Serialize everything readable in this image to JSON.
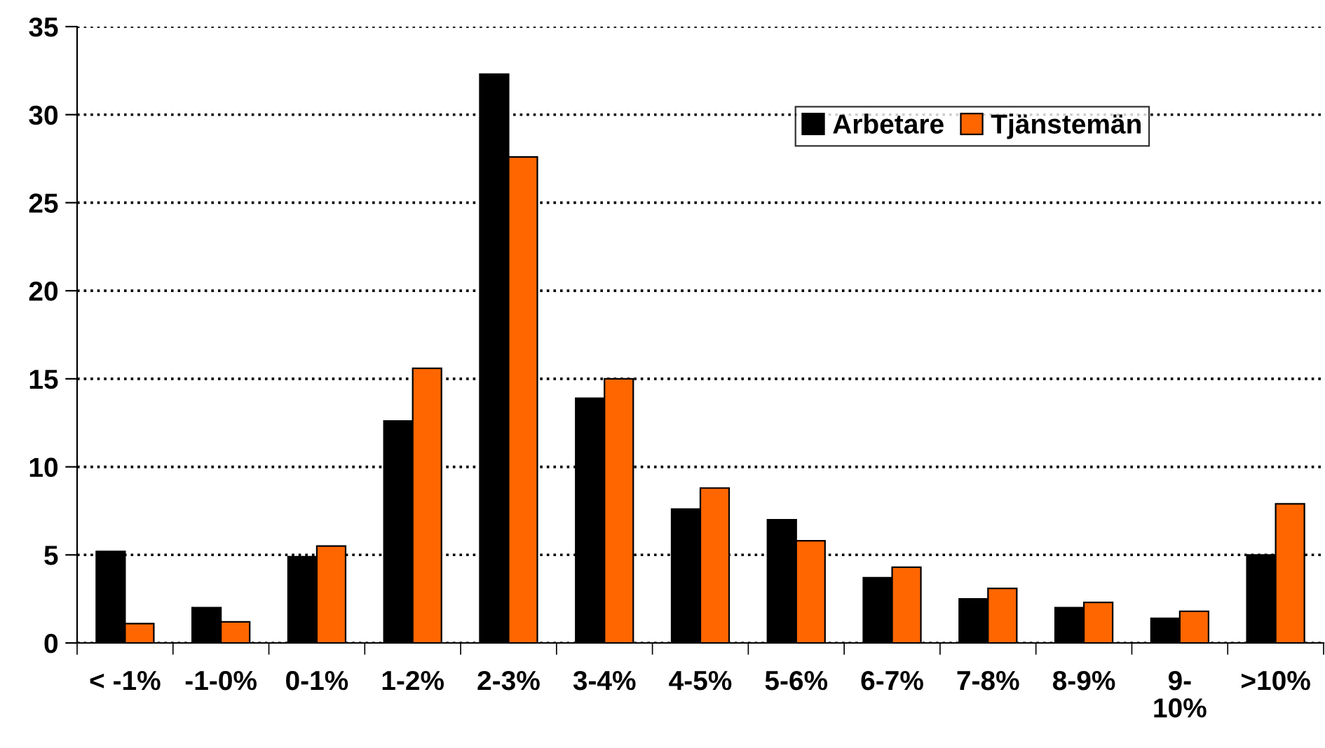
{
  "chart_data": {
    "type": "bar",
    "categories": [
      "< -1%",
      "-1-0%",
      "0-1%",
      "1-2%",
      "2-3%",
      "3-4%",
      "4-5%",
      "5-6%",
      "6-7%",
      "7-8%",
      "8-9%",
      "9-\n10%",
      ">10%"
    ],
    "series": [
      {
        "name": "Arbetare",
        "color": "#000000",
        "values": [
          5.2,
          2.0,
          4.9,
          12.6,
          32.3,
          13.9,
          7.6,
          7.0,
          3.7,
          2.5,
          2.0,
          1.4,
          5.0
        ]
      },
      {
        "name": "Tjänstemän",
        "color": "#ff6600",
        "values": [
          1.1,
          1.2,
          5.5,
          15.6,
          27.6,
          15.0,
          8.8,
          5.8,
          4.3,
          3.1,
          2.3,
          1.8,
          7.9
        ]
      }
    ],
    "ylim": [
      0,
      35
    ],
    "yticks": [
      0,
      5,
      10,
      15,
      20,
      25,
      30,
      35
    ],
    "grid": "y",
    "line_style": "dotted",
    "legend": "top right"
  }
}
